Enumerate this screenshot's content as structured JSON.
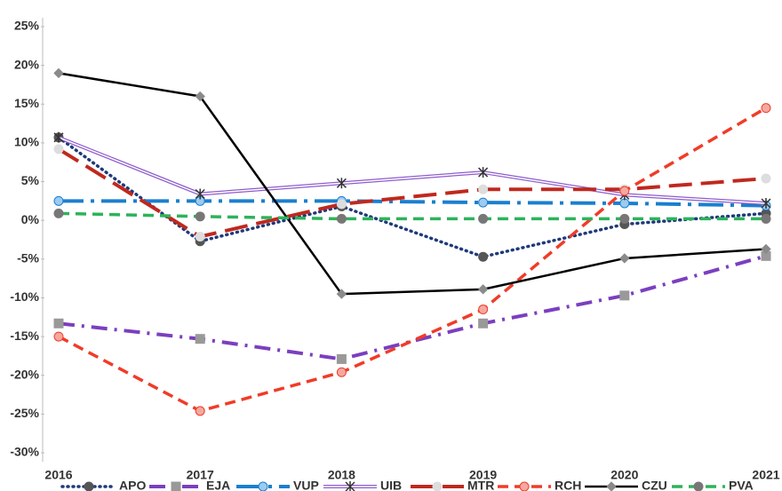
{
  "chart_data": {
    "type": "line",
    "categories": [
      "2016",
      "2017",
      "2018",
      "2019",
      "2020",
      "2021"
    ],
    "ylim": [
      -30,
      25
    ],
    "yticks": [
      {
        "value": 25,
        "label": "25%"
      },
      {
        "value": 20,
        "label": "20%"
      },
      {
        "value": 15,
        "label": "15%"
      },
      {
        "value": 10,
        "label": "10%"
      },
      {
        "value": 5,
        "label": "5%"
      },
      {
        "value": 0,
        "label": "0%"
      },
      {
        "value": -5,
        "label": "-5%"
      },
      {
        "value": -10,
        "label": "-10%"
      },
      {
        "value": -15,
        "label": "-15%"
      },
      {
        "value": -20,
        "label": "-20%"
      },
      {
        "value": -25,
        "label": "-25%"
      },
      {
        "value": -30,
        "label": "-30%"
      }
    ],
    "grid": false,
    "legend": "bottom",
    "series": [
      {
        "name": "APO",
        "color": "#1f3a7a",
        "line_style": "dotted",
        "marker": "circle",
        "marker_color": "#555555",
        "values": [
          10.7,
          -2.7,
          1.8,
          -4.7,
          -0.5,
          0.9
        ]
      },
      {
        "name": "EJA",
        "color": "#7b3fbf",
        "line_style": "dashdot",
        "marker": "square",
        "marker_color": "#999999",
        "values": [
          -13.3,
          -15.3,
          -17.9,
          -13.3,
          -9.7,
          -4.6
        ]
      },
      {
        "name": "VUP",
        "color": "#1a7fd0",
        "line_style": "longdashdot",
        "marker": "circle",
        "marker_color": "#9ccbee",
        "values": [
          2.5,
          2.5,
          2.5,
          2.3,
          2.2,
          1.9
        ]
      },
      {
        "name": "UIB",
        "color": "#8e5ccc",
        "line_style": "double",
        "marker": "star",
        "marker_color": "#333333",
        "values": [
          10.7,
          3.4,
          4.8,
          6.2,
          3.3,
          2.2
        ]
      },
      {
        "name": "MTR",
        "color": "#c0281e",
        "line_style": "longdash",
        "marker": "circle",
        "marker_color": "#dddddd",
        "values": [
          9.2,
          -2.1,
          2.1,
          4.0,
          4.0,
          5.4
        ]
      },
      {
        "name": "RCH",
        "color": "#f03c28",
        "line_style": "dash",
        "marker": "circle",
        "marker_color": "#f4a8a0",
        "values": [
          -15.0,
          -24.6,
          -19.6,
          -11.5,
          3.8,
          14.5
        ]
      },
      {
        "name": "CZU",
        "color": "#000000",
        "line_style": "solid",
        "marker": "diamond",
        "marker_color": "#8a8a8a",
        "values": [
          19.0,
          16.0,
          -9.5,
          -8.9,
          -4.9,
          -3.7
        ]
      },
      {
        "name": "PVA",
        "color": "#2db35a",
        "line_style": "dash",
        "marker": "circle",
        "marker_color": "#777777",
        "values": [
          0.9,
          0.5,
          0.2,
          0.2,
          0.2,
          0.2
        ]
      }
    ]
  }
}
